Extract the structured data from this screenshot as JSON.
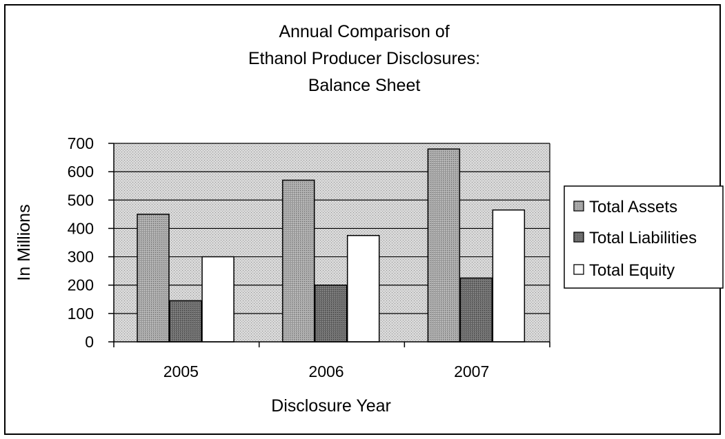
{
  "chart_data": {
    "type": "bar",
    "title_lines": [
      "Annual Comparison of",
      "Ethanol Producer Disclosures:",
      "Balance Sheet"
    ],
    "xlabel": "Disclosure Year",
    "ylabel": "In Millions",
    "categories": [
      "2005",
      "2006",
      "2007"
    ],
    "ylim": [
      0,
      700
    ],
    "yticks": [
      0,
      100,
      200,
      300,
      400,
      500,
      600,
      700
    ],
    "series": [
      {
        "name": "Total Assets",
        "values": [
          450,
          570,
          680
        ],
        "color": "#a8a8a8"
      },
      {
        "name": "Total Liabilities",
        "values": [
          145,
          200,
          225
        ],
        "color": "#6e6e6e"
      },
      {
        "name": "Total Equity",
        "values": [
          300,
          375,
          465
        ],
        "color": "#ffffff"
      }
    ],
    "grid": true,
    "legend_position": "right",
    "plot_background": "#d4d4d4"
  }
}
